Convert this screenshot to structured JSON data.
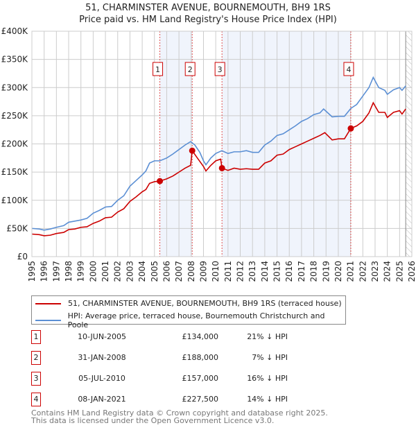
{
  "chart_data": {
    "type": "line",
    "title": "51, CHARMINSTER AVENUE, BOURNEMOUTH, BH9 1RS",
    "subtitle": "Price paid vs. HM Land Registry's House Price Index (HPI)",
    "xlim": [
      1995,
      2026
    ],
    "ylim": [
      0,
      400000
    ],
    "x_ticks": [
      "1995",
      "1996",
      "1997",
      "1998",
      "1999",
      "2000",
      "2001",
      "2002",
      "2003",
      "2004",
      "2005",
      "2006",
      "2007",
      "2008",
      "2009",
      "2010",
      "2011",
      "2012",
      "2013",
      "2014",
      "2015",
      "2016",
      "2017",
      "2018",
      "2019",
      "2020",
      "2021",
      "2022",
      "2023",
      "2024",
      "2025",
      "2026"
    ],
    "y_ticks": [
      {
        "v": 0,
        "label": "£0"
      },
      {
        "v": 50000,
        "label": "£50K"
      },
      {
        "v": 100000,
        "label": "£100K"
      },
      {
        "v": 150000,
        "label": "£150K"
      },
      {
        "v": 200000,
        "label": "£200K"
      },
      {
        "v": 250000,
        "label": "£250K"
      },
      {
        "v": 300000,
        "label": "£300K"
      },
      {
        "v": 350000,
        "label": "£350K"
      },
      {
        "v": 400000,
        "label": "£400K"
      }
    ],
    "grid": true,
    "shaded_periods": [
      [
        2005.44,
        2008.08
      ],
      [
        2010.51,
        2021.02
      ]
    ],
    "forecast_hatch_from": 2025.5,
    "series": [
      {
        "name": "51, CHARMINSTER AVENUE, BOURNEMOUTH, BH9 1RS (terraced house)",
        "color": "#cc0000",
        "x": [
          1995,
          1995.6,
          1996,
          1996.5,
          1997,
          1997.6,
          1998,
          1998.5,
          1999,
          1999.5,
          2000,
          2000.5,
          2001,
          2001.5,
          2002,
          2002.5,
          2003,
          2003.5,
          2004,
          2004.3,
          2004.6,
          2005,
          2005.44,
          2006,
          2006.5,
          2007,
          2007.5,
          2007.95,
          2008.08,
          2008.5,
          2009,
          2009.2,
          2009.6,
          2010,
          2010.4,
          2010.51,
          2011,
          2011.5,
          2012,
          2012.5,
          2013,
          2013.5,
          2014,
          2014.5,
          2015,
          2015.5,
          2016,
          2016.5,
          2017,
          2017.5,
          2018,
          2018.5,
          2018.9,
          2019.5,
          2020,
          2020.5,
          2021.02,
          2021.5,
          2022,
          2022.5,
          2022.85,
          2023.3,
          2023.8,
          2024,
          2024.5,
          2025,
          2025.2,
          2025.5
        ],
        "y": [
          40000,
          39000,
          37000,
          38000,
          41000,
          43000,
          48000,
          49000,
          52000,
          53000,
          59000,
          63000,
          69000,
          70000,
          79000,
          85000,
          98000,
          106000,
          115000,
          119000,
          130000,
          133000,
          134000,
          138000,
          143000,
          150000,
          157000,
          162000,
          188000,
          175000,
          160000,
          152000,
          162000,
          170000,
          173000,
          157000,
          153000,
          157000,
          155000,
          156000,
          155000,
          155000,
          166000,
          170000,
          180000,
          182000,
          190000,
          195000,
          200000,
          205000,
          210000,
          215000,
          220000,
          207000,
          209000,
          209000,
          227500,
          232000,
          240000,
          255000,
          273000,
          256000,
          256000,
          247000,
          256000,
          259000,
          253000,
          262000
        ]
      },
      {
        "name": "HPI: Average price, terraced house, Bournemouth Christchurch and Poole",
        "color": "#5b8fd4",
        "x": [
          1995,
          1995.6,
          1996,
          1996.5,
          1997,
          1997.6,
          1998,
          1998.5,
          1999,
          1999.5,
          2000,
          2000.5,
          2001,
          2001.5,
          2002,
          2002.5,
          2003,
          2003.5,
          2004,
          2004.3,
          2004.6,
          2005,
          2005.44,
          2006,
          2006.5,
          2007,
          2007.5,
          2007.95,
          2008.3,
          2008.7,
          2009,
          2009.2,
          2009.6,
          2010,
          2010.5,
          2011,
          2011.5,
          2012,
          2012.5,
          2013,
          2013.5,
          2014,
          2014.5,
          2015,
          2015.5,
          2016,
          2016.5,
          2017,
          2017.5,
          2018,
          2018.5,
          2018.8,
          2019.5,
          2020,
          2020.5,
          2021.02,
          2021.5,
          2022,
          2022.5,
          2022.85,
          2023.3,
          2023.8,
          2024,
          2024.5,
          2025,
          2025.2,
          2025.5
        ],
        "y": [
          50000,
          49000,
          47000,
          49000,
          52000,
          55000,
          61000,
          63000,
          65000,
          68000,
          77000,
          82000,
          88000,
          89000,
          100000,
          108000,
          125000,
          135000,
          145000,
          152000,
          166000,
          170000,
          170000,
          175000,
          182000,
          190000,
          198000,
          204000,
          198000,
          185000,
          170000,
          163000,
          175000,
          183000,
          188000,
          183000,
          186000,
          186000,
          188000,
          185000,
          185000,
          198000,
          205000,
          215000,
          218000,
          225000,
          232000,
          240000,
          245000,
          252000,
          255000,
          262000,
          248000,
          249000,
          249000,
          263000,
          270000,
          285000,
          300000,
          318000,
          300000,
          295000,
          288000,
          296000,
          300000,
          295000,
          303000
        ]
      }
    ],
    "sales": [
      {
        "n": "1",
        "x": 2005.44,
        "y": 134000,
        "date": "10-JUN-2005",
        "price": "£134,000",
        "hpi": "21% ↓ HPI"
      },
      {
        "n": "2",
        "x": 2008.08,
        "y": 188000,
        "date": "31-JAN-2008",
        "price": "£188,000",
        "hpi": "7% ↓ HPI"
      },
      {
        "n": "3",
        "x": 2010.51,
        "y": 157000,
        "date": "05-JUL-2010",
        "price": "£157,000",
        "hpi": "16% ↓ HPI"
      },
      {
        "n": "4",
        "x": 2021.02,
        "y": 227500,
        "date": "08-JAN-2021",
        "price": "£227,500",
        "hpi": "14% ↓ HPI"
      }
    ]
  },
  "footer": {
    "line1": "Contains HM Land Registry data © Crown copyright and database right 2025.",
    "line2": "This data is licensed under the Open Government Licence v3.0."
  }
}
